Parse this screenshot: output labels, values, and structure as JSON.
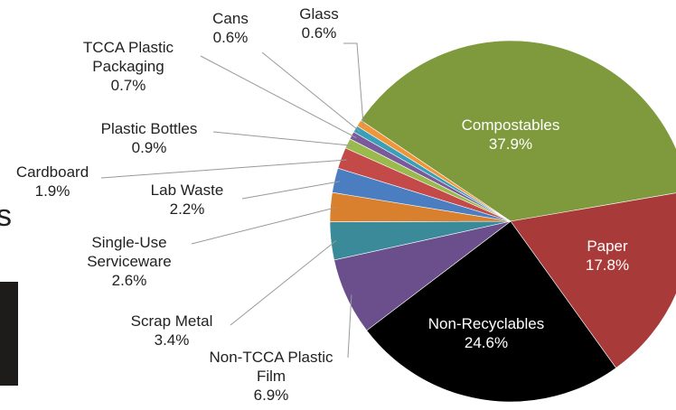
{
  "slide_fragment": {
    "text": "s"
  },
  "chart_data": {
    "type": "pie",
    "categories": [
      "Compostables",
      "Paper",
      "Non-Recyclables",
      "Non-TCCA Plastic Film",
      "Scrap Metal",
      "Single-Use Serviceware",
      "Lab Waste",
      "Cardboard",
      "Plastic Bottles",
      "TCCA Plastic Packaging",
      "Cans",
      "Glass"
    ],
    "values": [
      37.9,
      17.8,
      24.6,
      6.9,
      3.4,
      2.6,
      2.2,
      1.9,
      0.9,
      0.7,
      0.6,
      0.6
    ],
    "value_labels": [
      "37.9%",
      "17.8%",
      "24.6%",
      "6.9%",
      "3.4%",
      "2.6%",
      "2.2%",
      "1.9%",
      "0.9%",
      "0.7%",
      "0.6%",
      "0.6%"
    ],
    "colors": [
      "#7f9a3c",
      "#a83a3a",
      "#000000",
      "#6b4f8c",
      "#3a8a9a",
      "#d9802f",
      "#4a7ec0",
      "#c44a4a",
      "#9aba4e",
      "#7a5a9a",
      "#3aa0b8",
      "#f0963a"
    ]
  }
}
